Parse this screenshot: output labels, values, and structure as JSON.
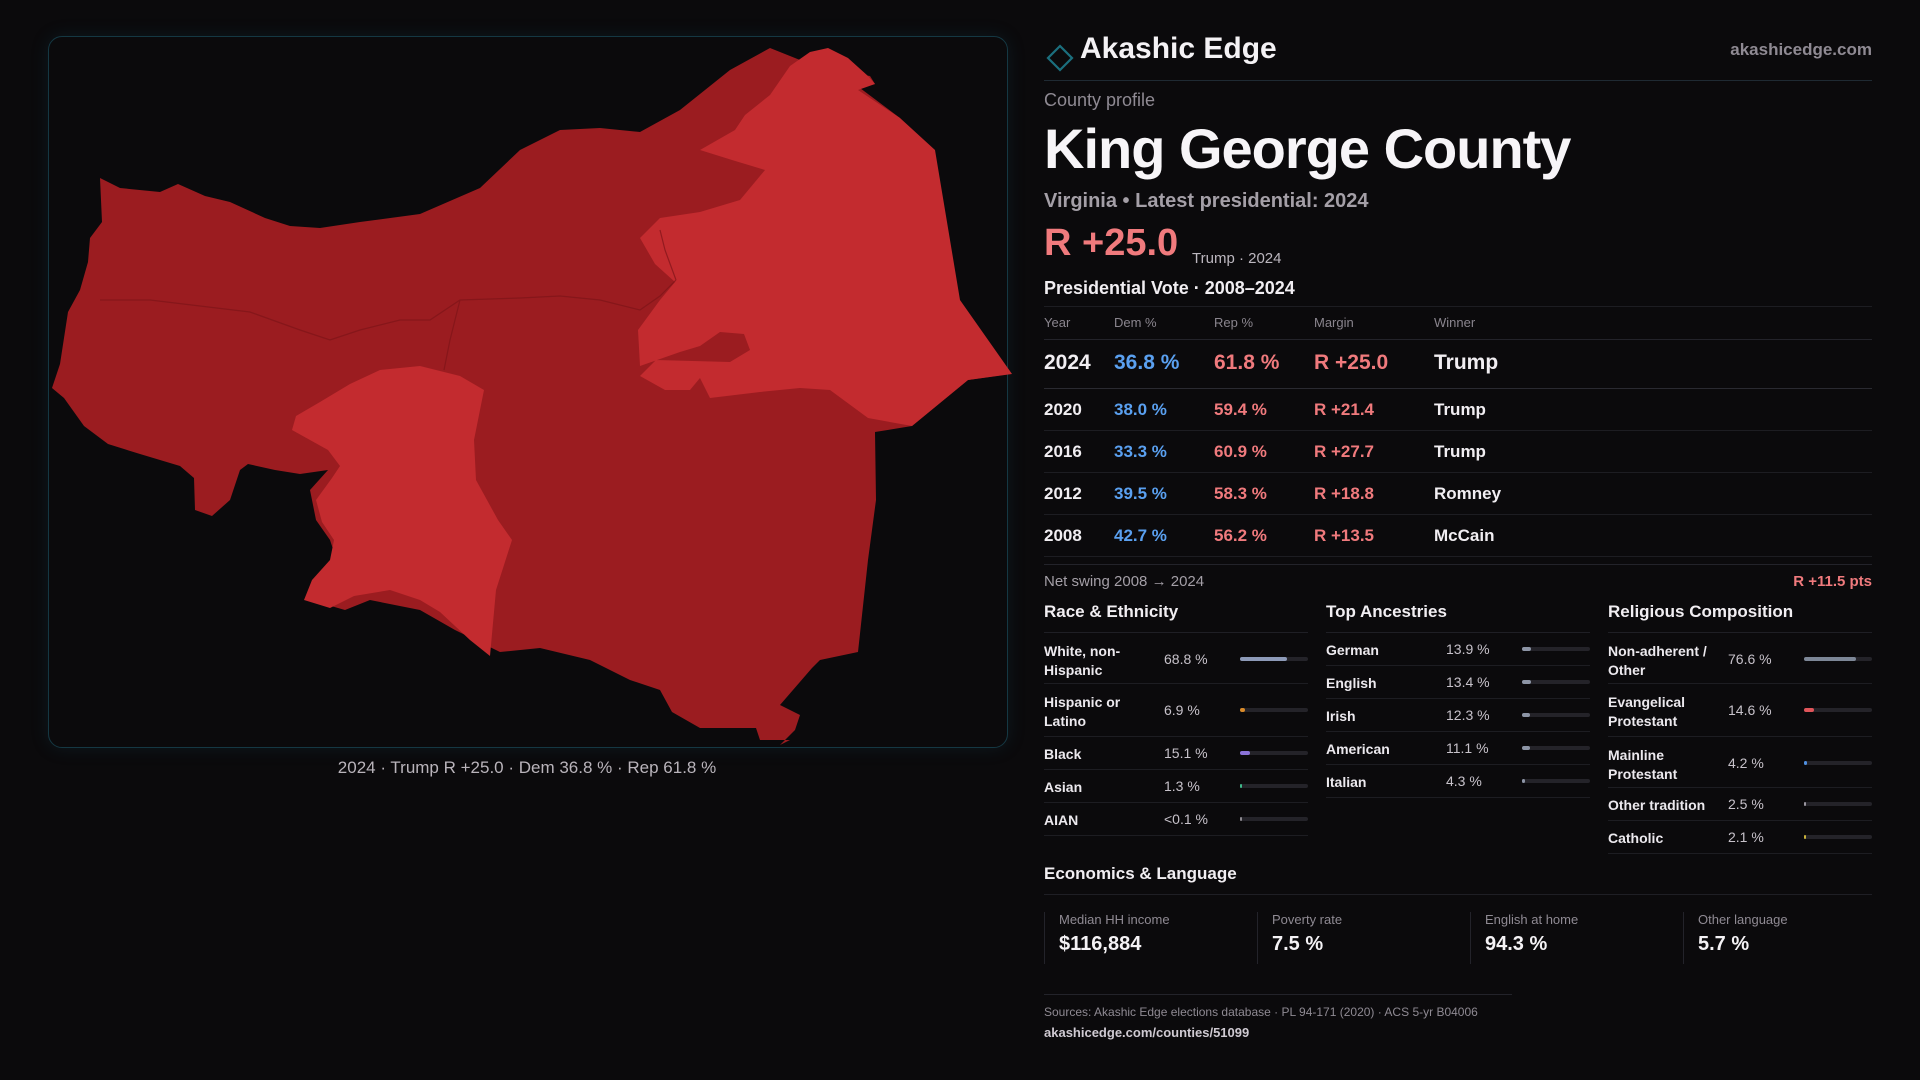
{
  "colors": {
    "rep_dark": "#9b1c20",
    "rep_light": "#c32b2f",
    "dem_text": "#5aa0f0",
    "rep_text": "#f07a7d",
    "accent": "#1b6f7e"
  },
  "map": {
    "caption": "2024 · Trump R +25.0 · Dem 36.8 % · Rep 61.8 %"
  },
  "brand": {
    "name": "Akashic Edge",
    "url": "akashicedge.com"
  },
  "profile": {
    "subtitle": "County profile",
    "county": "King George County",
    "stateline": "Virginia • Latest presidential: 2024",
    "margin": "R +25.0",
    "margin_note": "Trump · 2024"
  },
  "votes": {
    "title": "Presidential Vote · 2008–2024",
    "headers": [
      "Year",
      "Dem %",
      "Rep %",
      "Margin",
      "Winner"
    ],
    "rows": [
      {
        "year": "2024",
        "dem": "36.8 %",
        "rep": "61.8 %",
        "margin": "R +25.0",
        "winner": "Trump"
      },
      {
        "year": "2020",
        "dem": "38.0 %",
        "rep": "59.4 %",
        "margin": "R +21.4",
        "winner": "Trump"
      },
      {
        "year": "2016",
        "dem": "33.3 %",
        "rep": "60.9 %",
        "margin": "R +27.7",
        "winner": "Trump"
      },
      {
        "year": "2012",
        "dem": "39.5 %",
        "rep": "58.3 %",
        "margin": "R +18.8",
        "winner": "Romney"
      },
      {
        "year": "2008",
        "dem": "42.7 %",
        "rep": "56.2 %",
        "margin": "R +13.5",
        "winner": "McCain"
      }
    ],
    "swing_label": "Net swing 2008 → 2024",
    "swing_value": "R +11.5 pts"
  },
  "race": {
    "title": "Race & Ethnicity",
    "items": [
      {
        "label": "White, non-Hispanic",
        "value": "68.8 %",
        "pct": 68.8,
        "color": "#8d9ab8"
      },
      {
        "label": "Hispanic or Latino",
        "value": "6.9 %",
        "pct": 6.9,
        "color": "#d88a2a"
      },
      {
        "label": "Black",
        "value": "15.1 %",
        "pct": 15.1,
        "color": "#8a72d8"
      },
      {
        "label": "Asian",
        "value": "1.3 %",
        "pct": 1.3,
        "color": "#3fb98a"
      },
      {
        "label": "AIAN",
        "value": "<0.1 %",
        "pct": 0.1,
        "color": "#8d8a90"
      }
    ]
  },
  "ancestry": {
    "title": "Top Ancestries",
    "items": [
      {
        "label": "German",
        "value": "13.9 %",
        "pct": 13.9,
        "color": "#8d95a6"
      },
      {
        "label": "English",
        "value": "13.4 %",
        "pct": 13.4,
        "color": "#8d95a6"
      },
      {
        "label": "Irish",
        "value": "12.3 %",
        "pct": 12.3,
        "color": "#8d95a6"
      },
      {
        "label": "American",
        "value": "11.1 %",
        "pct": 11.1,
        "color": "#8d95a6"
      },
      {
        "label": "Italian",
        "value": "4.3 %",
        "pct": 4.3,
        "color": "#8d95a6"
      }
    ]
  },
  "religion": {
    "title": "Religious Composition",
    "items": [
      {
        "label": "Non-adherent / Other",
        "value": "76.6 %",
        "pct": 76.6,
        "color": "#7d8797"
      },
      {
        "label": "Evangelical Protestant",
        "value": "14.6 %",
        "pct": 14.6,
        "color": "#e0555a"
      },
      {
        "label": "Mainline Protestant",
        "value": "4.2 %",
        "pct": 4.2,
        "color": "#4f8fe0"
      },
      {
        "label": "Other tradition",
        "value": "2.5 %",
        "pct": 2.5,
        "color": "#9a96a0"
      },
      {
        "label": "Catholic",
        "value": "2.1 %",
        "pct": 2.1,
        "color": "#c9b23a"
      }
    ]
  },
  "economics": {
    "title": "Economics & Language",
    "stats": [
      {
        "label": "Median HH income",
        "value": "$116,884"
      },
      {
        "label": "Poverty rate",
        "value": "7.5 %"
      },
      {
        "label": "English at home",
        "value": "94.3 %"
      },
      {
        "label": "Other language",
        "value": "5.7 %"
      }
    ]
  },
  "sources": {
    "line1": "Sources: Akashic Edge elections database · PL 94-171 (2020) · ACS 5-yr B04006",
    "line2": "akashicedge.com/counties/51099"
  }
}
